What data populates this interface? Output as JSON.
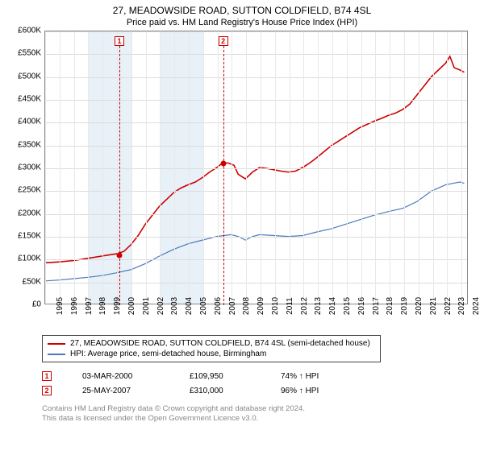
{
  "title": "27, MEADOWSIDE ROAD, SUTTON COLDFIELD, B74 4SL",
  "subtitle": "Price paid vs. HM Land Registry's House Price Index (HPI)",
  "chart": {
    "type": "line",
    "ylim": [
      0,
      600000
    ],
    "ytick_step": 50000,
    "y_ticks": [
      "£0",
      "£50K",
      "£100K",
      "£150K",
      "£200K",
      "£250K",
      "£300K",
      "£350K",
      "£400K",
      "£450K",
      "£500K",
      "£550K",
      "£600K"
    ],
    "x_years": [
      1995,
      1996,
      1997,
      1998,
      1999,
      2000,
      2001,
      2002,
      2003,
      2004,
      2005,
      2006,
      2007,
      2008,
      2009,
      2010,
      2011,
      2012,
      2013,
      2014,
      2015,
      2016,
      2017,
      2018,
      2019,
      2020,
      2021,
      2022,
      2023,
      2024
    ],
    "x_min": 1995,
    "x_max": 2024.5,
    "shade_bands": [
      [
        1998,
        2001
      ],
      [
        2003,
        2006
      ]
    ],
    "background_color": "#ffffff",
    "grid_color": "#dcdcdc",
    "series": [
      {
        "name": "property",
        "color": "#cc0000",
        "width": 1.6,
        "points": [
          [
            1995,
            90000
          ],
          [
            1996,
            92000
          ],
          [
            1997,
            95000
          ],
          [
            1998,
            100000
          ],
          [
            1999,
            105000
          ],
          [
            2000,
            109950
          ],
          [
            2000.5,
            115000
          ],
          [
            2001,
            130000
          ],
          [
            2001.5,
            150000
          ],
          [
            2002,
            175000
          ],
          [
            2002.5,
            195000
          ],
          [
            2003,
            215000
          ],
          [
            2003.5,
            230000
          ],
          [
            2004,
            245000
          ],
          [
            2004.5,
            255000
          ],
          [
            2005,
            262000
          ],
          [
            2005.5,
            268000
          ],
          [
            2006,
            278000
          ],
          [
            2006.5,
            290000
          ],
          [
            2007,
            300000
          ],
          [
            2007.4,
            310000
          ],
          [
            2007.8,
            310000
          ],
          [
            2008.2,
            305000
          ],
          [
            2008.5,
            285000
          ],
          [
            2009,
            275000
          ],
          [
            2009.5,
            290000
          ],
          [
            2010,
            300000
          ],
          [
            2010.5,
            298000
          ],
          [
            2011,
            295000
          ],
          [
            2011.5,
            292000
          ],
          [
            2012,
            290000
          ],
          [
            2012.5,
            292000
          ],
          [
            2013,
            300000
          ],
          [
            2013.5,
            310000
          ],
          [
            2014,
            322000
          ],
          [
            2014.5,
            335000
          ],
          [
            2015,
            348000
          ],
          [
            2015.5,
            358000
          ],
          [
            2016,
            368000
          ],
          [
            2016.5,
            378000
          ],
          [
            2017,
            388000
          ],
          [
            2017.5,
            395000
          ],
          [
            2018,
            402000
          ],
          [
            2018.5,
            408000
          ],
          [
            2019,
            415000
          ],
          [
            2019.5,
            420000
          ],
          [
            2020,
            428000
          ],
          [
            2020.5,
            440000
          ],
          [
            2021,
            460000
          ],
          [
            2021.5,
            480000
          ],
          [
            2022,
            500000
          ],
          [
            2022.5,
            515000
          ],
          [
            2023,
            530000
          ],
          [
            2023.3,
            545000
          ],
          [
            2023.6,
            520000
          ],
          [
            2024,
            515000
          ],
          [
            2024.3,
            510000
          ]
        ]
      },
      {
        "name": "hpi",
        "color": "#4a7ab8",
        "width": 1.2,
        "points": [
          [
            1995,
            50000
          ],
          [
            1996,
            52000
          ],
          [
            1997,
            55000
          ],
          [
            1998,
            58000
          ],
          [
            1999,
            62000
          ],
          [
            2000,
            68000
          ],
          [
            2001,
            75000
          ],
          [
            2002,
            88000
          ],
          [
            2003,
            105000
          ],
          [
            2004,
            120000
          ],
          [
            2005,
            132000
          ],
          [
            2006,
            140000
          ],
          [
            2007,
            148000
          ],
          [
            2008,
            152000
          ],
          [
            2008.5,
            148000
          ],
          [
            2009,
            140000
          ],
          [
            2009.5,
            148000
          ],
          [
            2010,
            152000
          ],
          [
            2011,
            150000
          ],
          [
            2012,
            148000
          ],
          [
            2013,
            150000
          ],
          [
            2014,
            158000
          ],
          [
            2015,
            165000
          ],
          [
            2016,
            175000
          ],
          [
            2017,
            185000
          ],
          [
            2018,
            195000
          ],
          [
            2019,
            203000
          ],
          [
            2020,
            210000
          ],
          [
            2021,
            225000
          ],
          [
            2022,
            248000
          ],
          [
            2023,
            262000
          ],
          [
            2023.5,
            265000
          ],
          [
            2024,
            268000
          ],
          [
            2024.3,
            265000
          ]
        ]
      }
    ],
    "markers": [
      {
        "n": "1",
        "x": 2000.17,
        "color": "#cc0000",
        "value": 109950
      },
      {
        "n": "2",
        "x": 2007.4,
        "color": "#cc0000",
        "value": 310000
      }
    ]
  },
  "legend": [
    {
      "color": "#cc0000",
      "text": "27, MEADOWSIDE ROAD, SUTTON COLDFIELD, B74 4SL (semi-detached house)"
    },
    {
      "color": "#4a7ab8",
      "text": "HPI: Average price, semi-detached house, Birmingham"
    }
  ],
  "sales": [
    {
      "n": "1",
      "color": "#cc0000",
      "date": "03-MAR-2000",
      "price": "£109,950",
      "pct": "74% ↑ HPI"
    },
    {
      "n": "2",
      "color": "#cc0000",
      "date": "25-MAY-2007",
      "price": "£310,000",
      "pct": "96% ↑ HPI"
    }
  ],
  "footnote_l1": "Contains HM Land Registry data © Crown copyright and database right 2024.",
  "footnote_l2": "This data is licensed under the Open Government Licence v3.0."
}
